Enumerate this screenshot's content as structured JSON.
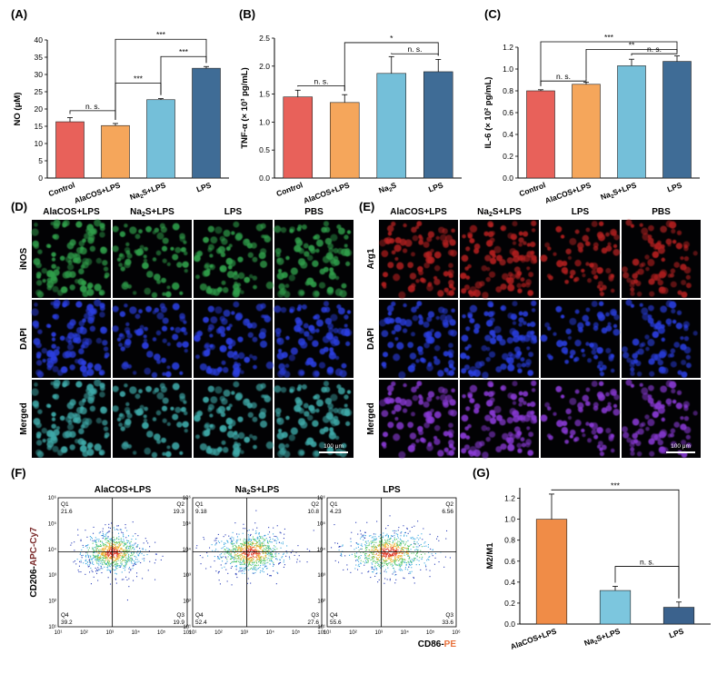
{
  "colors": {
    "red": "#e8615a",
    "orange": "#f5a65b",
    "lightblue": "#74bfd9",
    "darkblue": "#3f6c96",
    "g_orange": "#f08c47",
    "g_lightblue": "#7cc6de",
    "g_darkblue": "#3b628d",
    "pe_color": "#e8703a"
  },
  "panels": {
    "A": "(A)",
    "B": "(B)",
    "C": "(C)",
    "D": "(D)",
    "E": "(E)",
    "F": "(F)",
    "G": "(G)"
  },
  "chart_data": [
    {
      "id": "A",
      "type": "bar",
      "categories": [
        "Control",
        "AlaCOS+LPS",
        "Na2S+LPS",
        "LPS"
      ],
      "values": [
        16.3,
        15.2,
        22.7,
        31.8
      ],
      "errors": [
        1.2,
        0.6,
        0.3,
        0.5
      ],
      "ylabel": "NO (μM)",
      "ylim": [
        0,
        40
      ],
      "yticks": [
        0,
        5,
        10,
        15,
        20,
        25,
        30,
        35,
        40
      ],
      "significance": [
        {
          "from": 0,
          "to": 1,
          "label": "n. s."
        },
        {
          "from": 1,
          "to": 2,
          "label": "***"
        },
        {
          "from": 2,
          "to": 3,
          "label": "***"
        },
        {
          "from": 1,
          "to": 3,
          "label": "***"
        }
      ]
    },
    {
      "id": "B",
      "type": "bar",
      "categories": [
        "Control",
        "AlaCOS+LPS",
        "Na2S",
        "LPS"
      ],
      "values": [
        1.45,
        1.35,
        1.87,
        1.9
      ],
      "errors": [
        0.12,
        0.14,
        0.3,
        0.22
      ],
      "ylabel": "TNF-α (× 10³ pg/mL)",
      "ylim": [
        0,
        2.5
      ],
      "yticks": [
        0.0,
        0.5,
        1.0,
        1.5,
        2.0,
        2.5
      ],
      "significance": [
        {
          "from": 0,
          "to": 1,
          "label": "n. s."
        },
        {
          "from": 2,
          "to": 3,
          "label": "n. s."
        },
        {
          "from": 1,
          "to": 3,
          "label": "*"
        }
      ]
    },
    {
      "id": "C",
      "type": "bar",
      "categories": [
        "Control",
        "AlaCOS+LPS",
        "Na2S+LPS",
        "LPS"
      ],
      "values": [
        0.8,
        0.86,
        1.03,
        1.07
      ],
      "errors": [
        0.01,
        0.02,
        0.06,
        0.05
      ],
      "ylabel": "IL-6 (× 10² pg/mL)",
      "ylim": [
        0,
        1.2
      ],
      "yticks": [
        0.0,
        0.2,
        0.4,
        0.6,
        0.8,
        1.0,
        1.2
      ],
      "significance": [
        {
          "from": 0,
          "to": 1,
          "label": "n. s."
        },
        {
          "from": 2,
          "to": 3,
          "label": "n. s."
        },
        {
          "from": 1,
          "to": 3,
          "label": "**"
        },
        {
          "from": 0,
          "to": 3,
          "label": "***"
        }
      ]
    },
    {
      "id": "G",
      "type": "bar",
      "categories": [
        "AlaCOS+LPS",
        "Na2S+LPS",
        "LPS"
      ],
      "values": [
        1.0,
        0.32,
        0.16
      ],
      "errors": [
        0.24,
        0.04,
        0.05
      ],
      "ylabel": "M2/M1",
      "ylim": [
        0,
        1.3
      ],
      "yticks": [
        0.0,
        0.2,
        0.4,
        0.6,
        0.8,
        1.0,
        1.2
      ],
      "significance": [
        {
          "from": 0,
          "to": 2,
          "label": "***"
        },
        {
          "from": 1,
          "to": 2,
          "label": "n. s."
        }
      ]
    }
  ],
  "microscopy_D": {
    "columns": [
      "AlaCOS+LPS",
      "Na2S+LPS",
      "LPS",
      "PBS"
    ],
    "rows": [
      "iNOS",
      "DAPI",
      "Merged"
    ],
    "scalebar": "100 μm"
  },
  "microscopy_E": {
    "columns": [
      "AlaCOS+LPS",
      "Na2S+LPS",
      "LPS",
      "PBS"
    ],
    "rows": [
      "Arg1",
      "DAPI",
      "Merged"
    ],
    "scalebar": "100 μm"
  },
  "flow_F": {
    "titles": [
      "AlaCOS+LPS",
      "Na2S+LPS",
      "LPS"
    ],
    "quadrants": [
      {
        "Q1": "21.6",
        "Q2": "19.3",
        "Q3": "19.9",
        "Q4": "39.2"
      },
      {
        "Q1": "9.18",
        "Q2": "10.8",
        "Q3": "27.6",
        "Q4": "52.4"
      },
      {
        "Q1": "4.23",
        "Q2": "6.56",
        "Q3": "33.6",
        "Q4": "55.6"
      }
    ],
    "quad_names": [
      "Q1",
      "Q2",
      "Q3",
      "Q4"
    ],
    "y_axis_prefix": "CD206-",
    "y_axis_dye": "APC-Cy7",
    "x_axis_prefix": "CD86-",
    "x_axis_dye": "PE",
    "tick_labels": [
      "10¹",
      "10²",
      "10³",
      "10⁴",
      "10⁵",
      "10⁶"
    ]
  }
}
